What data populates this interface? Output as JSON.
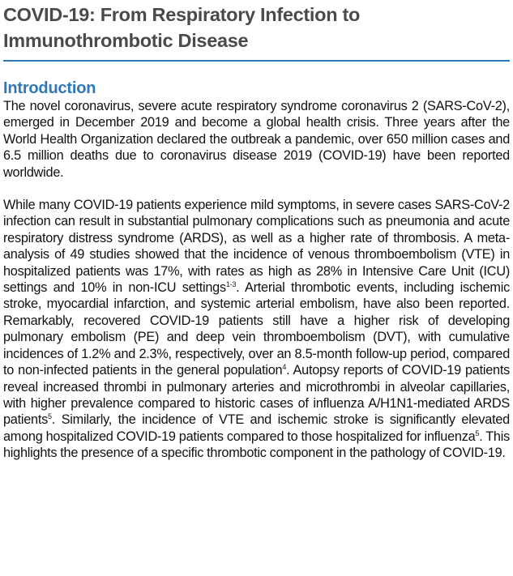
{
  "article": {
    "title_line1": "COVID-19: From Respiratory Infection to",
    "title_line2": "Immunothrombotic Disease",
    "section_heading": "Introduction"
  },
  "paragraphs": {
    "p1": "The novel coronavirus, severe acute respiratory syndrome coronavirus 2 (SARS-CoV-2), emerged in December 2019 and become a global health crisis. Three years after the World Health Organization declared the outbreak a pandemic, over 650 million cases and 6.5 million deaths due to coronavirus disease 2019 (COVID-19) have been reported worldwide.",
    "p2_a": "While many COVID-19 patients experience mild symptoms, in severe cases SARS-CoV-2 infection can result in substantial pulmonary complications such as pneumonia and acute respiratory distress syndrome (ARDS), as well as a higher rate of thrombosis. A meta-analysis of 49 studies showed that the incidence of venous thromboembolism (VTE) in hospitalized patients was 17%, with rates as high as 28% in Intensive Care Unit (ICU) settings and 10% in non-ICU settings",
    "p2_ref1": "1-3",
    "p2_b": ". Arterial thrombotic events, including ischemic stroke, myocardial infarction, and systemic arterial embolism, have also been reported. Remarkably, recovered COVID-19 patients still have a higher risk of developing pulmonary embolism (PE) and deep vein thromboembolism (DVT), with cumulative incidences of 1.2% and 2.3%, respectively, over an 8.5-month follow-up period, compared to non-infected patients in the general population",
    "p2_ref2": "4",
    "p2_c": ". Autopsy reports of COVID-19 patients reveal increased thrombi in pulmonary arteries and microthrombi in alveolar capillaries, with higher prevalence compared to historic cases of influenza A/H1N1-mediated ARDS patients",
    "p2_ref3": "5",
    "p2_d": ". Similarly, the incidence of VTE and ischemic stroke is significantly elevated among hospitalized COVID-19 patients compared to those hospitalized for influenza",
    "p2_ref4": "5",
    "p2_e": ". This highlights the presence of a specific thrombotic component in the pathology of COVID-19."
  },
  "colors": {
    "accent": "#2e78b7",
    "title_text": "#4a4a4a",
    "body_text": "#111111"
  }
}
